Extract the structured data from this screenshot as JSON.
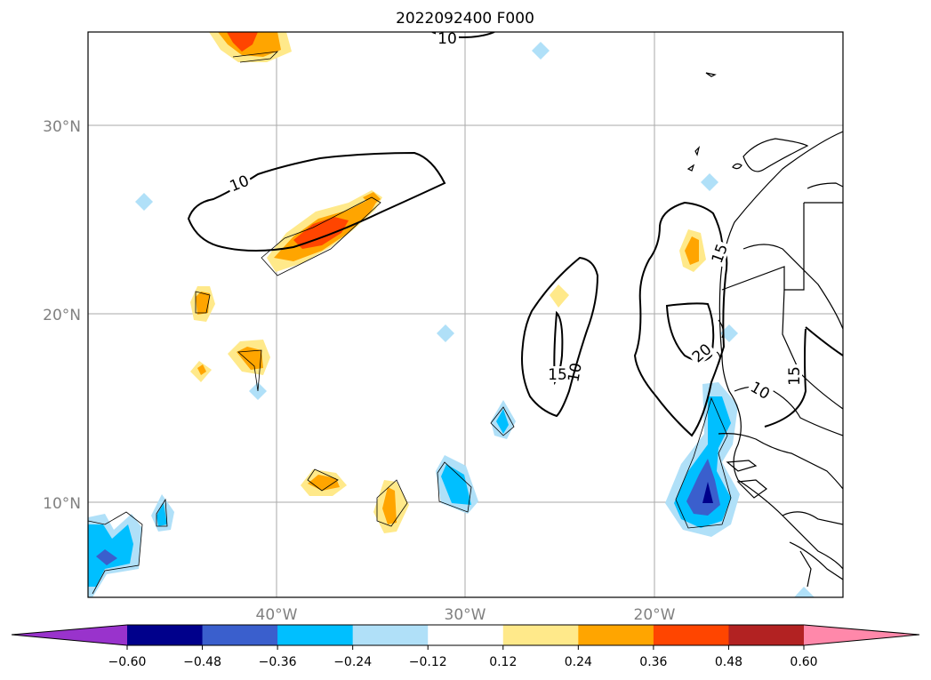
{
  "title": "2022092400 F000",
  "map": {
    "lat_ticks": [
      "10°N",
      "20°N",
      "30°N"
    ],
    "lon_ticks": [
      "40°W",
      "30°W",
      "20°W"
    ],
    "contour_labels": [
      "10",
      "10",
      "15",
      "10",
      "15",
      "20",
      "10",
      "15"
    ],
    "grid": true
  },
  "colorbar": {
    "orientation": "horizontal",
    "extend": "both",
    "levels": [
      "−0.60",
      "−0.48",
      "−0.36",
      "−0.24",
      "−0.12",
      "0.12",
      "0.24",
      "0.36",
      "0.48",
      "0.60"
    ],
    "colors": {
      "below_min": "#9933cc",
      "bins": [
        "#00008b",
        "#3a5fcd",
        "#00bfff",
        "#b0e0f8",
        "#ffffff",
        "#ffe98a",
        "#ffa500",
        "#ff4500",
        "#b22222"
      ],
      "above_max": "#ff88aa"
    }
  }
}
